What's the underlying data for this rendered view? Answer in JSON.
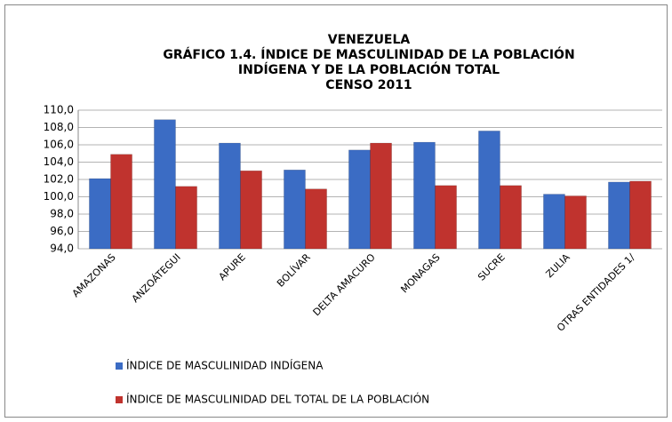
{
  "chart_data": {
    "type": "bar",
    "title": [
      "VENEZUELA",
      "GRÁFICO 1.4. ÍNDICE DE MASCULINIDAD DE LA POBLACIÓN",
      "INDÍGENA Y DE LA POBLACIÓN TOTAL",
      "CENSO 2011"
    ],
    "categories": [
      "AMAZONAS",
      "ANZOÁTEGUI",
      "APURE",
      "BOLÍVAR",
      "DELTA AMACURO",
      "MONAGAS",
      "SUCRE",
      "ZULIA",
      "OTRAS ENTIDADES 1/"
    ],
    "series": [
      {
        "name": "ÍNDICE DE MASCULINIDAD INDÍGENA",
        "color": "#3b6cc4",
        "values": [
          102.1,
          108.9,
          106.2,
          103.1,
          105.4,
          106.3,
          107.6,
          100.3,
          101.7
        ]
      },
      {
        "name": "ÍNDICE DE MASCULINIDAD DEL TOTAL DE LA POBLACIÓN",
        "color": "#c0332e",
        "values": [
          104.9,
          101.2,
          103.0,
          100.9,
          106.2,
          101.3,
          101.3,
          100.1,
          101.8
        ]
      }
    ],
    "ylim": [
      94,
      110
    ],
    "yticks": [
      {
        "value": 94,
        "label": "94,0"
      },
      {
        "value": 96,
        "label": "96,0"
      },
      {
        "value": 98,
        "label": "98,0"
      },
      {
        "value": 100,
        "label": "100,0"
      },
      {
        "value": 102,
        "label": "102,0"
      },
      {
        "value": 104,
        "label": "104,0"
      },
      {
        "value": 106,
        "label": "106,0"
      },
      {
        "value": 108,
        "label": "108,0"
      },
      {
        "value": 110,
        "label": "110,0"
      }
    ],
    "grid": true
  }
}
